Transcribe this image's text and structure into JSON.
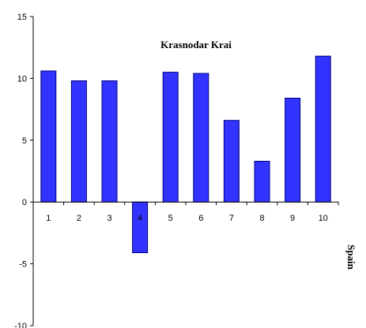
{
  "chart_data": {
    "type": "bar",
    "title": "Krasnodar Krai",
    "xlabel": "Spain",
    "ylabel": "",
    "categories": [
      "1",
      "2",
      "3",
      "4",
      "5",
      "6",
      "7",
      "8",
      "9",
      "10"
    ],
    "values": [
      10.6,
      9.8,
      9.8,
      -4.1,
      10.5,
      10.4,
      6.6,
      3.3,
      8.4,
      11.8
    ],
    "ylim": [
      -10,
      15
    ],
    "yticks": [
      -10,
      -5,
      0,
      5,
      10,
      15
    ],
    "grid": false,
    "colors": {
      "bar_fill": "#3333ff",
      "bar_stroke": "#000080",
      "axis": "#000000"
    }
  }
}
